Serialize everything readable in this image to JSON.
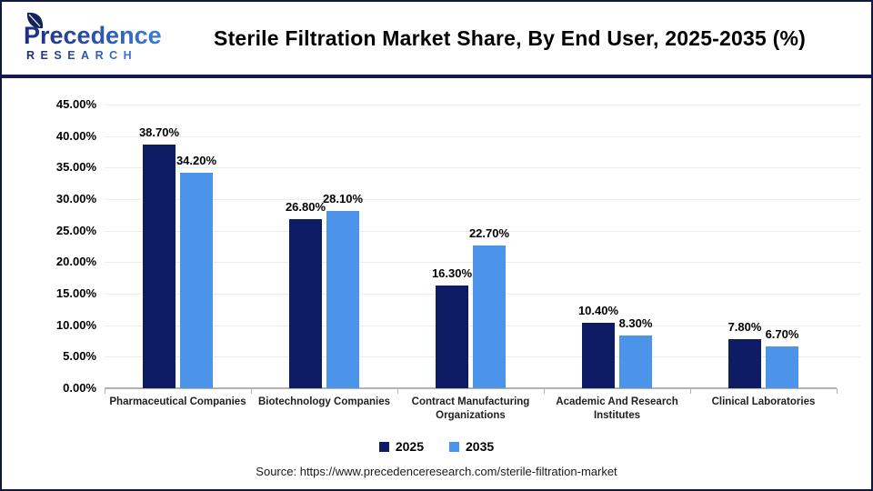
{
  "header": {
    "logo": {
      "brand": "Precedence",
      "sub": "RESEARCH"
    },
    "title": "Sterile Filtration Market Share, By End User, 2025-2035 (%)"
  },
  "chart_data": {
    "type": "bar",
    "title": "Sterile Filtration Market Share, By End User, 2025-2035 (%)",
    "categories": [
      "Pharmaceutical Companies",
      "Biotechnology Companies",
      "Contract Manufacturing Organizations",
      "Academic And Research Institutes",
      "Clinical Laboratories"
    ],
    "series": [
      {
        "name": "2025",
        "color": "#0d1c64",
        "values": [
          38.7,
          26.8,
          16.3,
          10.4,
          7.8
        ]
      },
      {
        "name": "2035",
        "color": "#4b94e9",
        "values": [
          34.2,
          28.1,
          22.7,
          8.3,
          6.7
        ]
      }
    ],
    "value_label_format": "0.00%",
    "yticks": [
      "45.00%",
      "40.00%",
      "35.00%",
      "30.00%",
      "25.00%",
      "20.00%",
      "15.00%",
      "10.00%",
      "5.00%",
      "0.00%"
    ],
    "ylim": [
      0,
      45
    ],
    "grid": true,
    "legend_position": "bottom"
  },
  "footer": {
    "source": "Source: https://www.precedenceresearch.com/sterile-filtration-market"
  },
  "colors": {
    "series_2025": "#0d1c64",
    "series_2035": "#4b94e9",
    "axis": "#b2b2b2",
    "gridline": "#ececec",
    "divider": "#11194d"
  }
}
